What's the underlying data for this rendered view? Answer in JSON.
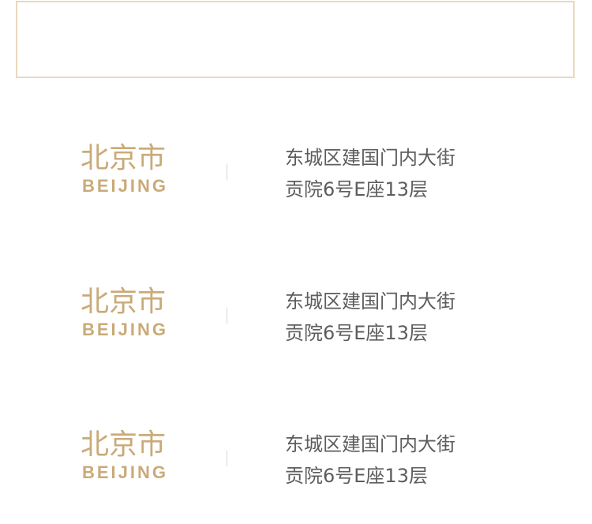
{
  "locations": [
    {
      "city_zh": "北京市",
      "city_en": "BEIJING",
      "address_line_1": "东城区建国门内大街",
      "address_line_2": "贡院6号E座13层"
    },
    {
      "city_zh": "北京市",
      "city_en": "BEIJING",
      "address_line_1": "东城区建国门内大街",
      "address_line_2": "贡院6号E座13层"
    },
    {
      "city_zh": "北京市",
      "city_en": "BEIJING",
      "address_line_1": "东城区建国门内大街",
      "address_line_2": "贡院6号E座13层"
    }
  ]
}
